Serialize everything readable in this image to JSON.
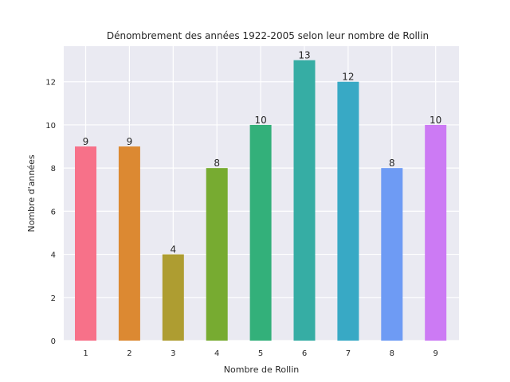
{
  "chart_data": {
    "type": "bar",
    "title": "Dénombrement des années 1922-2005 selon leur nombre de Rollin",
    "xlabel": "Nombre de Rollin",
    "ylabel": "Nombre d'années",
    "categories": [
      "1",
      "2",
      "3",
      "4",
      "5",
      "6",
      "7",
      "8",
      "9"
    ],
    "values": [
      9,
      9,
      4,
      8,
      10,
      13,
      12,
      8,
      10
    ],
    "colors": [
      "#f77189",
      "#dc8932",
      "#ae9d31",
      "#77ab31",
      "#33b07a",
      "#36ada4",
      "#38a9c5",
      "#6e9bf4",
      "#cc7af4"
    ],
    "ylim": [
      0,
      13.65
    ],
    "yticks": [
      0,
      2,
      4,
      6,
      8,
      10,
      12
    ],
    "grid": true,
    "background": "#eaeaf2",
    "data_labels": true
  }
}
